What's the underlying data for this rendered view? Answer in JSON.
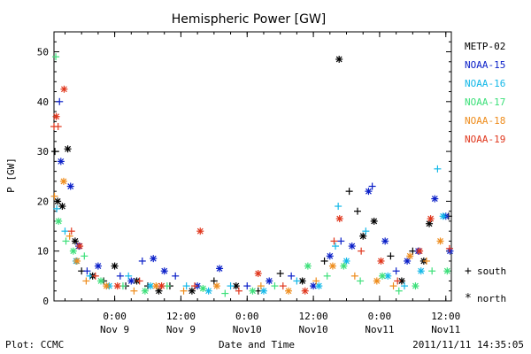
{
  "chart_data": {
    "type": "scatter",
    "title": "Hemispheric Power [GW]",
    "ylabel": "P [GW]",
    "xlabel": "Date and Time",
    "xlim": [
      "2011-11-08T13:00",
      "2011-11-11T13:00"
    ],
    "ylim": [
      0,
      54
    ],
    "yticks": [
      0,
      10,
      20,
      30,
      40,
      50
    ],
    "xticks": [
      {
        "t": "2011-11-09T00:00",
        "label1": "0:00",
        "label2": "Nov 9"
      },
      {
        "t": "2011-11-09T12:00",
        "label1": "12:00",
        "label2": "Nov 9"
      },
      {
        "t": "2011-11-10T00:00",
        "label1": "0:00",
        "label2": "Nov10"
      },
      {
        "t": "2011-11-10T12:00",
        "label1": "12:00",
        "label2": "Nov10"
      },
      {
        "t": "2011-11-11T00:00",
        "label1": "0:00",
        "label2": "Nov11"
      },
      {
        "t": "2011-11-11T12:00",
        "label1": "12:00",
        "label2": "Nov11"
      }
    ],
    "marker_legend": [
      {
        "symbol": "+",
        "label": "south"
      },
      {
        "symbol": "*",
        "label": "north"
      }
    ],
    "series": [
      {
        "name": "METP-02",
        "color": "#000000",
        "points": [
          [
            "2011-11-08T13:10",
            30,
            "+"
          ],
          [
            "2011-11-08T13:40",
            20,
            "*"
          ],
          [
            "2011-11-08T14:30",
            19,
            "*"
          ],
          [
            "2011-11-08T15:30",
            30.5,
            "*"
          ],
          [
            "2011-11-08T16:50",
            12,
            "*"
          ],
          [
            "2011-11-08T18:00",
            6,
            "+"
          ],
          [
            "2011-11-08T20:00",
            5,
            "*"
          ],
          [
            "2011-11-08T22:00",
            4,
            "+"
          ],
          [
            "2011-11-09T00:00",
            7,
            "*"
          ],
          [
            "2011-11-09T02:00",
            3,
            "+"
          ],
          [
            "2011-11-09T04:00",
            4,
            "*"
          ],
          [
            "2011-11-09T06:00",
            3,
            "+"
          ],
          [
            "2011-11-09T08:00",
            2,
            "*"
          ],
          [
            "2011-11-09T10:00",
            3,
            "+"
          ],
          [
            "2011-11-09T14:00",
            2,
            "*"
          ],
          [
            "2011-11-09T18:00",
            4,
            "+"
          ],
          [
            "2011-11-09T22:00",
            3,
            "*"
          ],
          [
            "2011-11-10T02:00",
            2,
            "+"
          ],
          [
            "2011-11-10T06:00",
            5.5,
            "+"
          ],
          [
            "2011-11-10T10:00",
            4,
            "*"
          ],
          [
            "2011-11-10T14:00",
            8,
            "+"
          ],
          [
            "2011-11-10T16:40",
            48.5,
            "*"
          ],
          [
            "2011-11-10T18:30",
            22,
            "+"
          ],
          [
            "2011-11-10T20:00",
            18,
            "+"
          ],
          [
            "2011-11-10T21:00",
            13,
            "*"
          ],
          [
            "2011-11-10T23:00",
            16,
            "*"
          ],
          [
            "2011-11-11T02:00",
            9,
            "+"
          ],
          [
            "2011-11-11T04:00",
            4,
            "*"
          ],
          [
            "2011-11-11T06:00",
            10,
            "+"
          ],
          [
            "2011-11-11T08:00",
            8,
            "*"
          ],
          [
            "2011-11-11T09:00",
            15.5,
            "*"
          ],
          [
            "2011-11-11T12:30",
            17,
            "+"
          ]
        ]
      },
      {
        "name": "NOAA-15",
        "color": "#0a1fc8",
        "points": [
          [
            "2011-11-08T14:00",
            40,
            "+"
          ],
          [
            "2011-11-08T14:15",
            28,
            "*"
          ],
          [
            "2011-11-08T16:00",
            23,
            "*"
          ],
          [
            "2011-11-08T17:30",
            11,
            "*"
          ],
          [
            "2011-11-08T19:00",
            6,
            "+"
          ],
          [
            "2011-11-08T21:00",
            7,
            "*"
          ],
          [
            "2011-11-09T01:00",
            5,
            "+"
          ],
          [
            "2011-11-09T03:00",
            4,
            "*"
          ],
          [
            "2011-11-09T05:00",
            8,
            "+"
          ],
          [
            "2011-11-09T07:00",
            8.5,
            "*"
          ],
          [
            "2011-11-09T09:00",
            6,
            "*"
          ],
          [
            "2011-11-09T11:00",
            5,
            "+"
          ],
          [
            "2011-11-09T15:00",
            3,
            "*"
          ],
          [
            "2011-11-09T19:00",
            6.5,
            "*"
          ],
          [
            "2011-11-10T00:00",
            3,
            "+"
          ],
          [
            "2011-11-10T04:00",
            4,
            "*"
          ],
          [
            "2011-11-10T08:00",
            5,
            "+"
          ],
          [
            "2011-11-10T12:00",
            3,
            "*"
          ],
          [
            "2011-11-10T15:00",
            9,
            "*"
          ],
          [
            "2011-11-10T17:00",
            12,
            "+"
          ],
          [
            "2011-11-10T19:00",
            11,
            "*"
          ],
          [
            "2011-11-10T22:00",
            22,
            "*"
          ],
          [
            "2011-11-10T22:40",
            23,
            "+"
          ],
          [
            "2011-11-11T01:00",
            12,
            "*"
          ],
          [
            "2011-11-11T03:00",
            6,
            "+"
          ],
          [
            "2011-11-11T05:00",
            8,
            "*"
          ],
          [
            "2011-11-11T07:00",
            10,
            "*"
          ],
          [
            "2011-11-11T10:00",
            20.5,
            "*"
          ],
          [
            "2011-11-11T12:00",
            17,
            "*"
          ],
          [
            "2011-11-11T12:45",
            10,
            "*"
          ]
        ]
      },
      {
        "name": "NOAA-16",
        "color": "#13b8e8",
        "points": [
          [
            "2011-11-08T13:30",
            18.5,
            "+"
          ],
          [
            "2011-11-08T15:00",
            14,
            "+"
          ],
          [
            "2011-11-08T17:00",
            8,
            "*"
          ],
          [
            "2011-11-08T19:30",
            5,
            "+"
          ],
          [
            "2011-11-08T23:00",
            3,
            "*"
          ],
          [
            "2011-11-09T02:30",
            5,
            "+"
          ],
          [
            "2011-11-09T06:30",
            3,
            "*"
          ],
          [
            "2011-11-09T13:00",
            3,
            "+"
          ],
          [
            "2011-11-09T17:00",
            2,
            "*"
          ],
          [
            "2011-11-09T21:00",
            3,
            "+"
          ],
          [
            "2011-11-10T03:00",
            2,
            "*"
          ],
          [
            "2011-11-10T09:00",
            4,
            "+"
          ],
          [
            "2011-11-10T13:00",
            3,
            "*"
          ],
          [
            "2011-11-10T16:00",
            11,
            "+"
          ],
          [
            "2011-11-10T16:30",
            19,
            "+"
          ],
          [
            "2011-11-10T18:00",
            8,
            "*"
          ],
          [
            "2011-11-10T21:30",
            14,
            "+"
          ],
          [
            "2011-11-11T01:30",
            5,
            "*"
          ],
          [
            "2011-11-11T04:30",
            3,
            "+"
          ],
          [
            "2011-11-11T07:30",
            6,
            "*"
          ],
          [
            "2011-11-11T10:30",
            26.5,
            "+"
          ],
          [
            "2011-11-11T11:30",
            17,
            "*"
          ]
        ]
      },
      {
        "name": "NOAA-17",
        "color": "#3de07a",
        "points": [
          [
            "2011-11-08T13:20",
            49,
            "+"
          ],
          [
            "2011-11-08T13:50",
            16,
            "*"
          ],
          [
            "2011-11-08T15:10",
            12,
            "+"
          ],
          [
            "2011-11-08T16:30",
            10,
            "*"
          ],
          [
            "2011-11-08T18:30",
            9,
            "+"
          ],
          [
            "2011-11-08T21:30",
            4,
            "*"
          ],
          [
            "2011-11-09T01:30",
            3,
            "+"
          ],
          [
            "2011-11-09T05:30",
            2,
            "*"
          ],
          [
            "2011-11-09T09:30",
            3,
            "+"
          ],
          [
            "2011-11-09T16:00",
            2.5,
            "*"
          ],
          [
            "2011-11-09T20:00",
            1.5,
            "+"
          ],
          [
            "2011-11-10T01:00",
            2,
            "*"
          ],
          [
            "2011-11-10T05:00",
            3,
            "+"
          ],
          [
            "2011-11-10T11:00",
            7,
            "*"
          ],
          [
            "2011-11-10T14:30",
            5,
            "+"
          ],
          [
            "2011-11-10T17:30",
            7,
            "*"
          ],
          [
            "2011-11-10T20:30",
            4,
            "+"
          ],
          [
            "2011-11-11T00:30",
            5,
            "*"
          ],
          [
            "2011-11-11T03:30",
            2,
            "+"
          ],
          [
            "2011-11-11T06:30",
            3,
            "*"
          ],
          [
            "2011-11-11T09:30",
            6,
            "+"
          ],
          [
            "2011-11-11T12:15",
            6,
            "*"
          ]
        ]
      },
      {
        "name": "NOAA-18",
        "color": "#ee8c1c",
        "points": [
          [
            "2011-11-08T13:05",
            21,
            "+"
          ],
          [
            "2011-11-08T14:45",
            24,
            "*"
          ],
          [
            "2011-11-08T15:50",
            13,
            "+"
          ],
          [
            "2011-11-08T17:10",
            8,
            "*"
          ],
          [
            "2011-11-08T18:50",
            4,
            "+"
          ],
          [
            "2011-11-08T22:30",
            3,
            "*"
          ],
          [
            "2011-11-09T03:30",
            2,
            "+"
          ],
          [
            "2011-11-09T07:30",
            3,
            "*"
          ],
          [
            "2011-11-09T12:30",
            2,
            "+"
          ],
          [
            "2011-11-09T18:30",
            3,
            "*"
          ],
          [
            "2011-11-10T02:30",
            3,
            "+"
          ],
          [
            "2011-11-10T07:30",
            2,
            "*"
          ],
          [
            "2011-11-10T12:30",
            4,
            "+"
          ],
          [
            "2011-11-10T15:30",
            7,
            "*"
          ],
          [
            "2011-11-10T19:30",
            5,
            "+"
          ],
          [
            "2011-11-10T23:30",
            4,
            "*"
          ],
          [
            "2011-11-11T02:30",
            3,
            "+"
          ],
          [
            "2011-11-11T05:30",
            9,
            "*"
          ],
          [
            "2011-11-11T08:30",
            8,
            "+"
          ],
          [
            "2011-11-11T11:00",
            12,
            "*"
          ]
        ]
      },
      {
        "name": "NOAA-19",
        "color": "#e0361c",
        "points": [
          [
            "2011-11-08T13:00",
            35,
            "+"
          ],
          [
            "2011-11-08T13:25",
            37,
            "*"
          ],
          [
            "2011-11-08T13:45",
            35,
            "+"
          ],
          [
            "2011-11-08T14:50",
            42.5,
            "*"
          ],
          [
            "2011-11-08T16:10",
            14,
            "+"
          ],
          [
            "2011-11-08T17:40",
            11,
            "*"
          ],
          [
            "2011-11-08T20:30",
            5,
            "+"
          ],
          [
            "2011-11-09T00:30",
            3,
            "*"
          ],
          [
            "2011-11-09T04:30",
            4,
            "+"
          ],
          [
            "2011-11-09T08:30",
            3,
            "*"
          ],
          [
            "2011-11-09T14:30",
            3,
            "+"
          ],
          [
            "2011-11-09T15:30",
            14,
            "*"
          ],
          [
            "2011-11-09T22:30",
            2,
            "+"
          ],
          [
            "2011-11-10T02:00",
            5.5,
            "*"
          ],
          [
            "2011-11-10T06:30",
            3,
            "+"
          ],
          [
            "2011-11-10T10:30",
            2,
            "*"
          ],
          [
            "2011-11-10T15:45",
            12,
            "+"
          ],
          [
            "2011-11-10T16:45",
            16.5,
            "*"
          ],
          [
            "2011-11-10T20:40",
            10,
            "+"
          ],
          [
            "2011-11-11T00:15",
            8,
            "*"
          ],
          [
            "2011-11-11T03:15",
            4,
            "+"
          ],
          [
            "2011-11-11T07:15",
            10,
            "*"
          ],
          [
            "2011-11-11T09:15",
            16.5,
            "*"
          ],
          [
            "2011-11-11T12:40",
            10.5,
            "+"
          ]
        ]
      }
    ]
  },
  "footer": {
    "plot_credit": "Plot: CCMC",
    "timestamp": "2011/11/11  14:35:05"
  }
}
